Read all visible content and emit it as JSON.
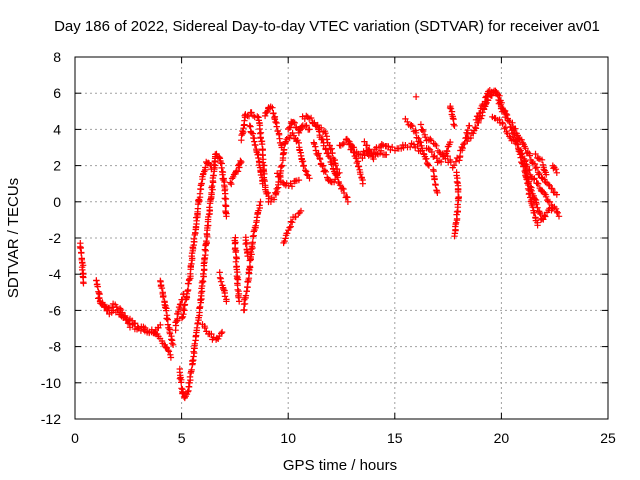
{
  "chart_data": {
    "type": "scatter",
    "title": "Day 186 of 2022, Sidereal Day-to-day VTEC variation (SDTVAR) for receiver av01",
    "xlabel": "GPS time / hours",
    "ylabel": "SDTVAR / TECUs",
    "xlim": [
      0,
      25
    ],
    "ylim": [
      -12,
      8
    ],
    "xticks": [
      "0",
      "5",
      "10",
      "15",
      "20",
      "25"
    ],
    "yticks": [
      "-12",
      "-10",
      "-8",
      "-6",
      "-4",
      "-2",
      "0",
      "2",
      "4",
      "6",
      "8"
    ],
    "grid": true,
    "marker": "+",
    "color": "#ff0000",
    "series_tracks": [
      [
        [
          0.25,
          -2.3
        ],
        [
          0.35,
          -3.5
        ],
        [
          0.4,
          -4.5
        ]
      ],
      [
        [
          1.0,
          -4.3
        ],
        [
          1.2,
          -5.5
        ],
        [
          1.5,
          -5.9
        ],
        [
          1.8,
          -5.7
        ],
        [
          2.2,
          -6.3
        ],
        [
          2.6,
          -6.6
        ],
        [
          3.0,
          -6.9
        ],
        [
          3.4,
          -7.1
        ],
        [
          3.8,
          -7.2
        ],
        [
          4.2,
          -7.8
        ],
        [
          4.5,
          -8.6
        ]
      ],
      [
        [
          1.1,
          -5.3
        ],
        [
          1.6,
          -6.2
        ],
        [
          2.1,
          -6.0
        ],
        [
          2.6,
          -6.9
        ],
        [
          3.1,
          -7.0
        ],
        [
          3.6,
          -7.3
        ],
        [
          4.0,
          -6.8
        ]
      ],
      [
        [
          4.0,
          -4.3
        ],
        [
          4.2,
          -5.5
        ],
        [
          4.4,
          -7.0
        ],
        [
          4.6,
          -7.9
        ]
      ],
      [
        [
          4.9,
          -9.3
        ],
        [
          5.0,
          -10.2
        ],
        [
          5.1,
          -10.8
        ],
        [
          5.3,
          -10.5
        ],
        [
          5.5,
          -9.0
        ],
        [
          5.7,
          -7.3
        ],
        [
          5.9,
          -5.5
        ],
        [
          6.1,
          -3.0
        ],
        [
          6.3,
          -0.5
        ],
        [
          6.5,
          1.5
        ],
        [
          6.6,
          2.7
        ],
        [
          6.8,
          2.5
        ],
        [
          7.0,
          1.0
        ],
        [
          7.1,
          -0.8
        ]
      ],
      [
        [
          5.0,
          -6.5
        ],
        [
          5.2,
          -5.5
        ],
        [
          5.4,
          -4.0
        ],
        [
          5.6,
          -2.0
        ],
        [
          5.8,
          0.0
        ],
        [
          6.0,
          1.5
        ],
        [
          6.2,
          2.2
        ],
        [
          6.4,
          1.8
        ]
      ],
      [
        [
          4.7,
          -7.0
        ],
        [
          4.9,
          -5.8
        ],
        [
          5.1,
          -5.1
        ]
      ],
      [
        [
          6.0,
          -6.8
        ],
        [
          6.3,
          -7.3
        ],
        [
          6.6,
          -7.7
        ],
        [
          6.9,
          -7.2
        ]
      ],
      [
        [
          7.3,
          1.0
        ],
        [
          7.5,
          1.5
        ],
        [
          7.7,
          2.0
        ],
        [
          7.8,
          2.2
        ]
      ],
      [
        [
          6.8,
          -4.0
        ],
        [
          7.0,
          -5.0
        ],
        [
          7.1,
          -5.5
        ]
      ],
      [
        [
          7.5,
          -2.0
        ],
        [
          7.6,
          -4.0
        ],
        [
          7.7,
          -5.5
        ]
      ],
      [
        [
          7.9,
          -6.0
        ],
        [
          8.1,
          -4.5
        ],
        [
          8.3,
          -2.5
        ],
        [
          8.5,
          -1.0
        ],
        [
          8.7,
          0.0
        ]
      ],
      [
        [
          8.0,
          -2.0
        ],
        [
          8.1,
          -3.0
        ]
      ],
      [
        [
          7.8,
          3.5
        ],
        [
          8.0,
          4.8
        ],
        [
          8.3,
          4.9
        ],
        [
          8.6,
          4.6
        ],
        [
          8.8,
          3.0
        ],
        [
          8.9,
          1.0
        ],
        [
          9.1,
          0.0
        ],
        [
          9.4,
          0.3
        ],
        [
          9.7,
          2.0
        ],
        [
          9.9,
          3.5
        ],
        [
          10.2,
          3.8
        ],
        [
          10.5,
          3.2
        ],
        [
          10.7,
          2.0
        ],
        [
          11.0,
          1.3
        ]
      ],
      [
        [
          8.2,
          4.2
        ],
        [
          8.5,
          3.0
        ],
        [
          8.7,
          1.8
        ],
        [
          8.8,
          1.0
        ]
      ],
      [
        [
          8.9,
          4.8
        ],
        [
          9.1,
          5.3
        ],
        [
          9.3,
          5.0
        ],
        [
          9.5,
          4.0
        ],
        [
          9.7,
          3.0
        ]
      ],
      [
        [
          9.8,
          -2.2
        ],
        [
          10.0,
          -1.5
        ],
        [
          10.3,
          -0.8
        ],
        [
          10.6,
          -0.5
        ]
      ],
      [
        [
          10.0,
          4.0
        ],
        [
          10.2,
          4.5
        ],
        [
          10.5,
          3.8
        ],
        [
          10.7,
          4.3
        ],
        [
          11.0,
          4.0
        ]
      ],
      [
        [
          9.5,
          1.5
        ],
        [
          9.8,
          1.0
        ],
        [
          10.1,
          0.9
        ],
        [
          10.5,
          1.2
        ]
      ],
      [
        [
          10.7,
          4.7
        ],
        [
          11.0,
          4.7
        ],
        [
          11.4,
          4.0
        ],
        [
          11.8,
          2.8
        ],
        [
          12.2,
          1.5
        ],
        [
          12.6,
          0.6
        ],
        [
          12.8,
          0.0
        ]
      ],
      [
        [
          11.2,
          3.2
        ],
        [
          11.6,
          2.0
        ],
        [
          12.0,
          1.0
        ],
        [
          12.4,
          1.6
        ]
      ],
      [
        [
          11.4,
          4.2
        ],
        [
          11.7,
          3.8
        ],
        [
          12.0,
          3.0
        ],
        [
          12.3,
          1.8
        ]
      ],
      [
        [
          12.4,
          3.0
        ],
        [
          12.7,
          3.4
        ],
        [
          13.0,
          3.2
        ],
        [
          13.3,
          2.0
        ],
        [
          13.5,
          1.0
        ]
      ],
      [
        [
          12.8,
          3.3
        ],
        [
          13.0,
          2.8
        ],
        [
          13.4,
          2.6
        ],
        [
          13.8,
          2.9
        ]
      ],
      [
        [
          13.5,
          2.5
        ],
        [
          14.0,
          2.8
        ],
        [
          14.4,
          3.2
        ],
        [
          14.8,
          2.9
        ],
        [
          15.2,
          3.0
        ],
        [
          15.5,
          3.1
        ],
        [
          15.9,
          3.2
        ],
        [
          16.2,
          2.8
        ]
      ],
      [
        [
          13.6,
          3.3
        ],
        [
          14.0,
          2.4
        ],
        [
          14.3,
          2.8
        ],
        [
          14.6,
          2.6
        ]
      ],
      [
        [
          15.5,
          4.5
        ],
        [
          15.8,
          4.2
        ],
        [
          16.1,
          3.5
        ],
        [
          16.4,
          2.5
        ],
        [
          16.6,
          2.0
        ]
      ],
      [
        [
          16.0,
          5.8
        ]
      ],
      [
        [
          16.2,
          4.2
        ],
        [
          16.5,
          3.5
        ],
        [
          16.8,
          3.2
        ],
        [
          17.1,
          2.8
        ],
        [
          17.4,
          2.5
        ],
        [
          17.7,
          2.0
        ],
        [
          18.0,
          2.4
        ],
        [
          18.3,
          3.4
        ],
        [
          18.5,
          4.2
        ]
      ],
      [
        [
          16.5,
          3.0
        ],
        [
          16.8,
          2.6
        ],
        [
          17.1,
          2.2
        ],
        [
          17.4,
          2.6
        ],
        [
          17.6,
          3.3
        ]
      ],
      [
        [
          16.8,
          1.7
        ],
        [
          16.9,
          1.0
        ],
        [
          17.0,
          0.5
        ]
      ],
      [
        [
          17.9,
          1.5
        ],
        [
          18.0,
          0.2
        ],
        [
          17.9,
          -1.0
        ],
        [
          17.8,
          -1.9
        ]
      ],
      [
        [
          17.6,
          5.3
        ],
        [
          17.8,
          4.2
        ]
      ],
      [
        [
          18.4,
          3.4
        ],
        [
          18.7,
          3.8
        ],
        [
          19.0,
          4.6
        ],
        [
          19.3,
          5.5
        ],
        [
          19.6,
          6.1
        ],
        [
          19.9,
          5.8
        ],
        [
          20.2,
          4.8
        ],
        [
          20.5,
          4.0
        ],
        [
          20.8,
          3.0
        ],
        [
          21.0,
          2.0
        ],
        [
          21.3,
          1.0
        ],
        [
          21.6,
          0.0
        ],
        [
          21.9,
          -1.0
        ],
        [
          22.2,
          -0.5
        ],
        [
          22.5,
          -0.3
        ],
        [
          22.7,
          -0.8
        ]
      ],
      [
        [
          18.8,
          4.5
        ],
        [
          19.1,
          5.2
        ],
        [
          19.4,
          6.0
        ],
        [
          19.7,
          6.2
        ],
        [
          20.0,
          5.2
        ],
        [
          20.3,
          4.6
        ]
      ],
      [
        [
          19.6,
          4.8
        ],
        [
          19.9,
          4.5
        ],
        [
          20.3,
          3.8
        ],
        [
          20.7,
          3.2
        ],
        [
          21.0,
          2.5
        ],
        [
          21.4,
          1.5
        ],
        [
          21.8,
          0.8
        ],
        [
          22.1,
          0.2
        ],
        [
          22.4,
          -0.3
        ]
      ],
      [
        [
          20.5,
          4.3
        ],
        [
          20.8,
          3.6
        ],
        [
          21.1,
          3.0
        ],
        [
          21.5,
          2.2
        ],
        [
          21.8,
          1.5
        ],
        [
          22.2,
          1.0
        ],
        [
          22.6,
          0.4
        ]
      ],
      [
        [
          21.1,
          2.0
        ],
        [
          21.3,
          0.5
        ],
        [
          21.5,
          -0.5
        ],
        [
          21.7,
          -1.3
        ]
      ],
      [
        [
          21.6,
          2.6
        ],
        [
          21.9,
          2.2
        ],
        [
          22.1,
          1.5
        ]
      ],
      [
        [
          22.4,
          2.0
        ],
        [
          22.6,
          1.6
        ]
      ]
    ]
  }
}
